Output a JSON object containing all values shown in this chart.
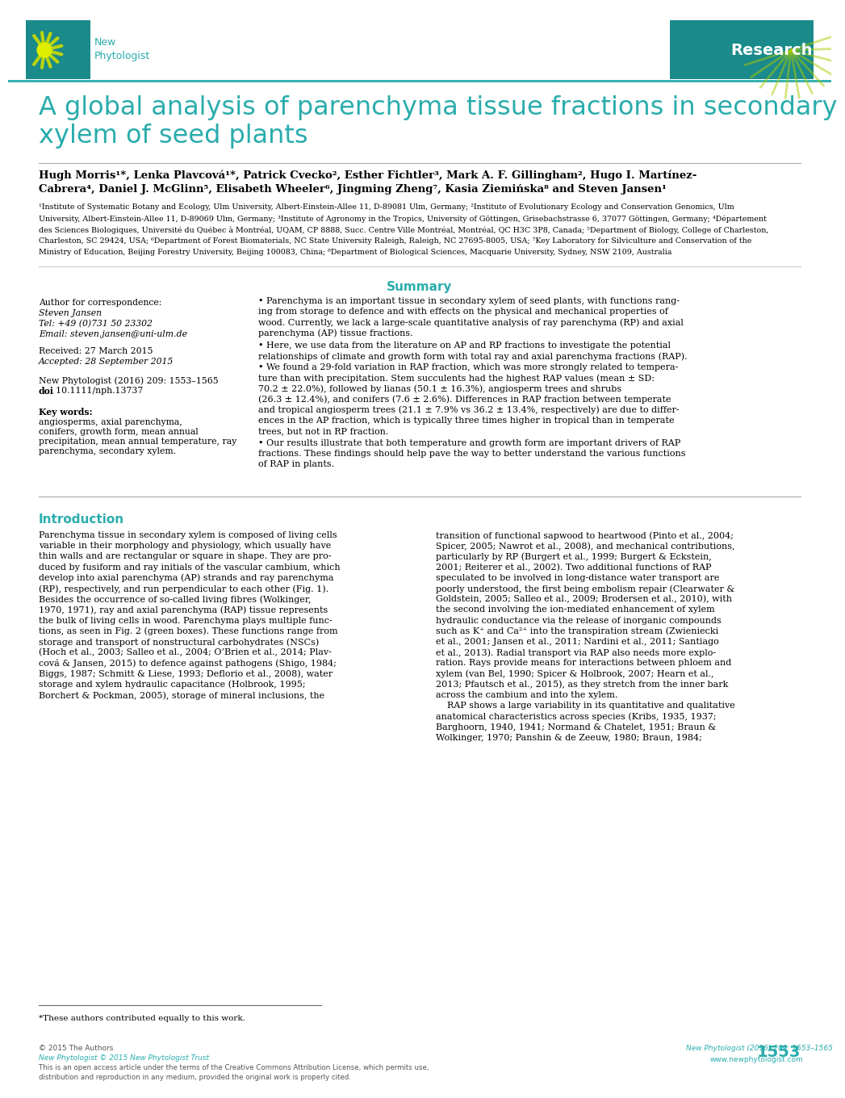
{
  "title_line1": "A global analysis of parenchyma tissue fractions in secondary",
  "title_line2": "xylem of seed plants",
  "title_color": "#2AACAC",
  "header_line_color": "#2AACAC",
  "journal_color": "#2AACAC",
  "research_label": "Research",
  "research_bg": "#1A8585",
  "authors_line1": "Hugh Morris¹*, Lenka Plavcová¹*, Patrick Cvecko², Esther Fichtler³, Mark A. F. Gillingham², Hugo I. Martínez-",
  "authors_line2": "Cabrera⁴, Daniel J. McGlinn⁵, Elisabeth Wheeler⁶, Jingming Zheng⁷, Kasia Ziemińska⁸ and Steven Jansen¹",
  "aff1": "¹Institute of Systematic Botany and Ecology, Ulm University, Albert-Einstein-Allee 11, D-89081 Ulm, Germany; ²Institute of Evolutionary Ecology and Conservation Genomics, Ulm",
  "aff2": "University, Albert-Einstein-Allee 11, D-89069 Ulm, Germany; ³Institute of Agronomy in the Tropics, University of Göttingen, Grisebachstrasse 6, 37077 Göttingen, Germany; ⁴Département",
  "aff3": "des Sciences Biologiques, Université du Québec à Montréal, UQAM, CP 8888, Succ. Centre Ville Montréal, Montréal, QC H3C 3P8, Canada; ⁵Department of Biology, College of Charleston,",
  "aff4": "Charleston, SC 29424, USA; ⁶Department of Forest Biomaterials, NC State University Raleigh, Raleigh, NC 27695-8005, USA; ⁷Key Laboratory for Silviculture and Conservation of the",
  "aff5": "Ministry of Education, Beijing Forestry University, Beijing 100083, China; ⁸Department of Biological Sciences, Macquarie University, Sydney, NSW 2109, Australia",
  "summary_title": "Summary",
  "summary_title_color": "#2AACAC",
  "b1": "• Parenchyma is an important tissue in secondary xylem of seed plants, with functions rang-ing from storage to defence and with effects on the physical and mechanical properties of wood. Currently, we lack a large-scale quantitative analysis of ray parenchyma (RP) and axial parenchyma (AP) tissue fractions.",
  "b2": "• Here, we use data from the literature on AP and RP fractions to investigate the potential relationships of climate and growth form with total ray and axial parenchyma fractions (RAP).",
  "b3": "• We found a 29-fold variation in RAP fraction, which was more strongly related to temperature than with precipitation. Stem succulents had the highest RAP values (mean ± SD: 70.2 ± 22.0%), followed by lianas (50.1 ± 16.3%), angiosperm trees and shrubs (26.3 ± 12.4%), and conifers (7.6 ± 2.6%). Differences in RAP fraction between temperate and tropical angiosperm trees (21.1 ± 7.9% vs 36.2 ± 13.4%, respectively) are due to differences in the AP fraction, which is typically three times higher in tropical than in temperate trees, but not in RP fraction.",
  "b4": "• Our results illustrate that both temperature and growth form are important drivers of RAP fractions. These findings should help pave the way to better understand the various functions of RAP in plants.",
  "corr_label": "Author for correspondence:",
  "corr_name": "Steven Jansen",
  "corr_tel": "Tel: +49 (0)731 50 23302",
  "corr_email": "Email: steven.jansen@uni-ulm.de",
  "received": "Received: 27 March 2015",
  "accepted": "Accepted: 28 September 2015",
  "journal_ref": "New Phytologist (2016) 209: 1553–1565",
  "doi_bold": "doi",
  "doi_rest": ": 10.1111/nph.13737",
  "kw_label": "Key words:",
  "kw_text": "  angiosperms, axial parenchyma, conifers, growth form, mean annual precipitation, mean annual temperature, ray parenchyma, secondary xylem.",
  "intro_title": "Introduction",
  "intro_title_color": "#2AACAC",
  "ic1_l1": "Parenchyma tissue in secondary xylem is composed of living cells",
  "ic1_l2": "variable in their morphology and physiology, which usually have",
  "ic1_l3": "thin walls and are rectangular or square in shape. They are pro-",
  "ic1_l4": "duced by fusiform and ray initials of the vascular cambium, which",
  "ic1_l5": "develop into axial parenchyma (AP) strands and ray parenchyma",
  "ic1_l6": "(RP), respectively, and run perpendicular to each other (Fig. 1).",
  "ic1_l7": "Besides the occurrence of so-called living fibres (Wolkinger,",
  "ic1_l8": "1970, 1971), ray and axial parenchyma (RAP) tissue represents",
  "ic1_l9": "the bulk of living cells in wood. Parenchyma plays multiple func-",
  "ic1_l10": "tions, as seen in Fig. 2 (green boxes). These functions range from",
  "ic1_l11": "storage and transport of nonstructural carbohydrates (NSCs)",
  "ic1_l12": "(Hoch et al., 2003; Salleo et al., 2004; O’Brien et al., 2014; Plav-",
  "ic1_l13": "cová & Jansen, 2015) to defence against pathogens (Shigo, 1984;",
  "ic1_l14": "Biggs, 1987; Schmitt & Liese, 1993; Deflorio et al., 2008), water",
  "ic1_l15": "storage and xylem hydraulic capacitance (Holbrook, 1995;",
  "ic1_l16": "Borchert & Pockman, 2005), storage of mineral inclusions, the",
  "ic2_l1": "transition of functional sapwood to heartwood (Pinto et al., 2004;",
  "ic2_l2": "Spicer, 2005; Nawrot et al., 2008), and mechanical contributions,",
  "ic2_l3": "particularly by RP (Burgert et al., 1999; Burgert & Eckstein,",
  "ic2_l4": "2001; Reiterer et al., 2002). Two additional functions of RAP",
  "ic2_l5": "speculated to be involved in long-distance water transport are",
  "ic2_l6": "poorly understood, the first being embolism repair (Clearwater &",
  "ic2_l7": "Goldstein, 2005; Salleo et al., 2009; Brodersen et al., 2010), with",
  "ic2_l8": "the second involving the ion-mediated enhancement of xylem",
  "ic2_l9": "hydraulic conductance via the release of inorganic compounds",
  "ic2_l10": "such as K⁺ and Ca²⁺ into the transpiration stream (Zwieniecki",
  "ic2_l11": "et al., 2001; Jansen et al., 2011; Nardini et al., 2011; Santiago",
  "ic2_l12": "et al., 2013). Radial transport via RAP also needs more explo-",
  "ic2_l13": "ration. Rays provide means for interactions between phloem and",
  "ic2_l14": "xylem (van Bel, 1990; Spicer & Holbrook, 2007; Hearn et al.,",
  "ic2_l15": "2013; Pfautsch et al., 2015), as they stretch from the inner bark",
  "ic2_l16": "across the cambium and into the xylem.",
  "ic2_l17": "    RAP shows a large variability in its quantitative and qualitative",
  "ic2_l18": "anatomical characteristics across species (Kribs, 1935, 1937;",
  "ic2_l19": "Barghoorn, 1940, 1941; Normand & Chatelet, 1951; Braun &",
  "ic2_l20": "Wolkinger, 1970; Panshin & de Zeeuw, 1980; Braun, 1984;",
  "footnote": "*These authors contributed equally to this work.",
  "copy1": "© 2015 The Authors",
  "copy2": "New Phytologist © 2015 New Phytologist Trust",
  "copy3": "This is an open access article under the terms of the Creative Commons Attribution License, which permits use,",
  "copy4": "distribution and reproduction in any medium, provided the original work is properly cited.",
  "pageref1": "New Phytologist (2016) 209: 1553–1565",
  "pageref2": "www.newphytologist.com",
  "pagenum": "1553",
  "bg_color": "#FFFFFF"
}
